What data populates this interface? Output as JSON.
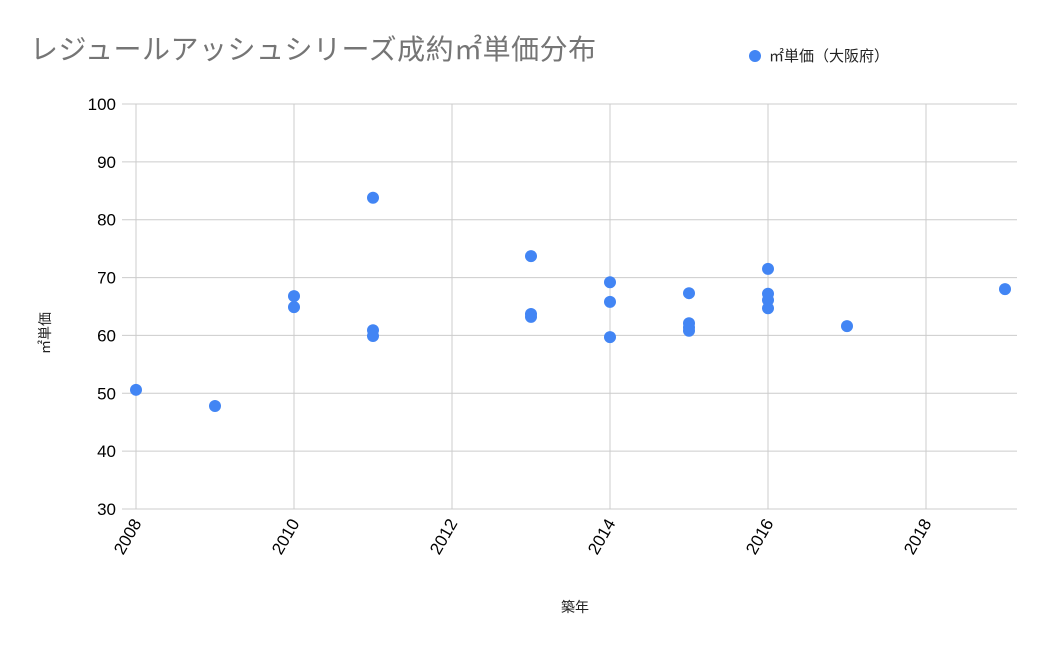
{
  "chart_data": {
    "type": "scatter",
    "title": "レジュールアッシュシリーズ成約㎡単価分布",
    "xlabel": "築年",
    "ylabel": "㎡単価",
    "xlim": [
      2008,
      2019
    ],
    "ylim": [
      30,
      100
    ],
    "x_ticks": [
      2008,
      2010,
      2012,
      2014,
      2016,
      2018
    ],
    "y_ticks": [
      30,
      40,
      50,
      60,
      70,
      80,
      90,
      100
    ],
    "grid": true,
    "legend_position": "top-right",
    "series": [
      {
        "name": "㎡単価（大阪府）",
        "color": "#4285f4",
        "points": [
          {
            "x": 2008,
            "y": 50.6
          },
          {
            "x": 2009,
            "y": 47.8
          },
          {
            "x": 2010,
            "y": 66.8
          },
          {
            "x": 2010,
            "y": 64.9
          },
          {
            "x": 2011,
            "y": 83.8
          },
          {
            "x": 2011,
            "y": 60.9
          },
          {
            "x": 2011,
            "y": 59.9
          },
          {
            "x": 2013,
            "y": 73.7
          },
          {
            "x": 2013,
            "y": 63.7
          },
          {
            "x": 2013,
            "y": 63.2
          },
          {
            "x": 2014,
            "y": 69.2
          },
          {
            "x": 2014,
            "y": 65.8
          },
          {
            "x": 2014,
            "y": 59.7
          },
          {
            "x": 2015,
            "y": 67.3
          },
          {
            "x": 2015,
            "y": 62.1
          },
          {
            "x": 2015,
            "y": 61.4
          },
          {
            "x": 2015,
            "y": 60.8
          },
          {
            "x": 2016,
            "y": 71.5
          },
          {
            "x": 2016,
            "y": 67.2
          },
          {
            "x": 2016,
            "y": 66.1
          },
          {
            "x": 2016,
            "y": 64.7
          },
          {
            "x": 2017,
            "y": 61.6
          },
          {
            "x": 2019,
            "y": 68.0
          }
        ]
      }
    ]
  }
}
